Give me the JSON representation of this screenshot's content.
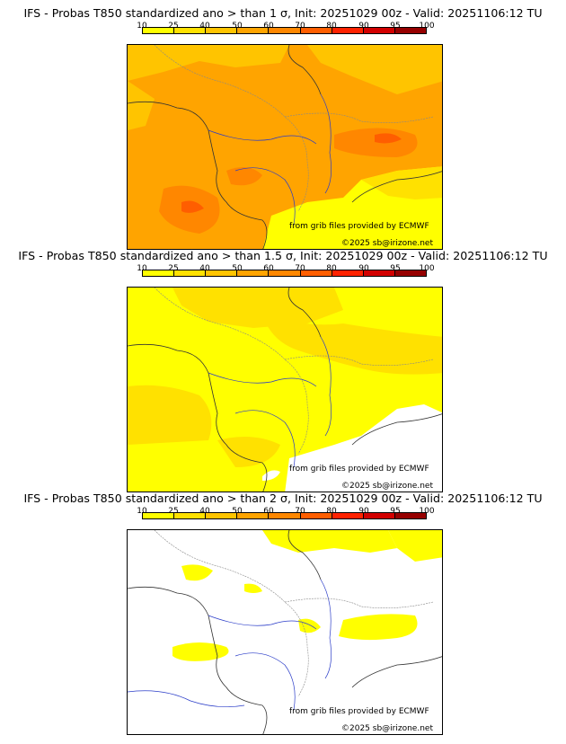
{
  "colorbar": {
    "ticks": [
      "10",
      "25",
      "40",
      "50",
      "60",
      "70",
      "80",
      "90",
      "95",
      "100"
    ],
    "colors": [
      "#ffff00",
      "#ffe100",
      "#ffc400",
      "#ffa400",
      "#ff8700",
      "#ff5e00",
      "#ff2200",
      "#d20000",
      "#960000",
      "#560000"
    ]
  },
  "panels": [
    {
      "title": "IFS - Probas T850  standardized ano > than 1 σ, Init: 20251029 00z - Valid: 20251106:12 TU",
      "source": "from grib files provided by ECMWF",
      "copyright": "©2025 sb@irizone.net",
      "dominant_class": "40-50"
    },
    {
      "title": "IFS - Probas T850  standardized ano > than 1.5 σ, Init: 20251029 00z - Valid: 20251106:12 TU",
      "source": "from grib files provided by ECMWF",
      "copyright": "©2025 sb@irizone.net",
      "dominant_class": "10-25"
    },
    {
      "title": "IFS - Probas T850  standardized ano > than 2 σ, Init: 20251029 00z - Valid: 20251106:12 TU",
      "source": "from grib files provided by ECMWF",
      "copyright": "©2025 sb@irizone.net",
      "dominant_class": "below 10"
    }
  ]
}
